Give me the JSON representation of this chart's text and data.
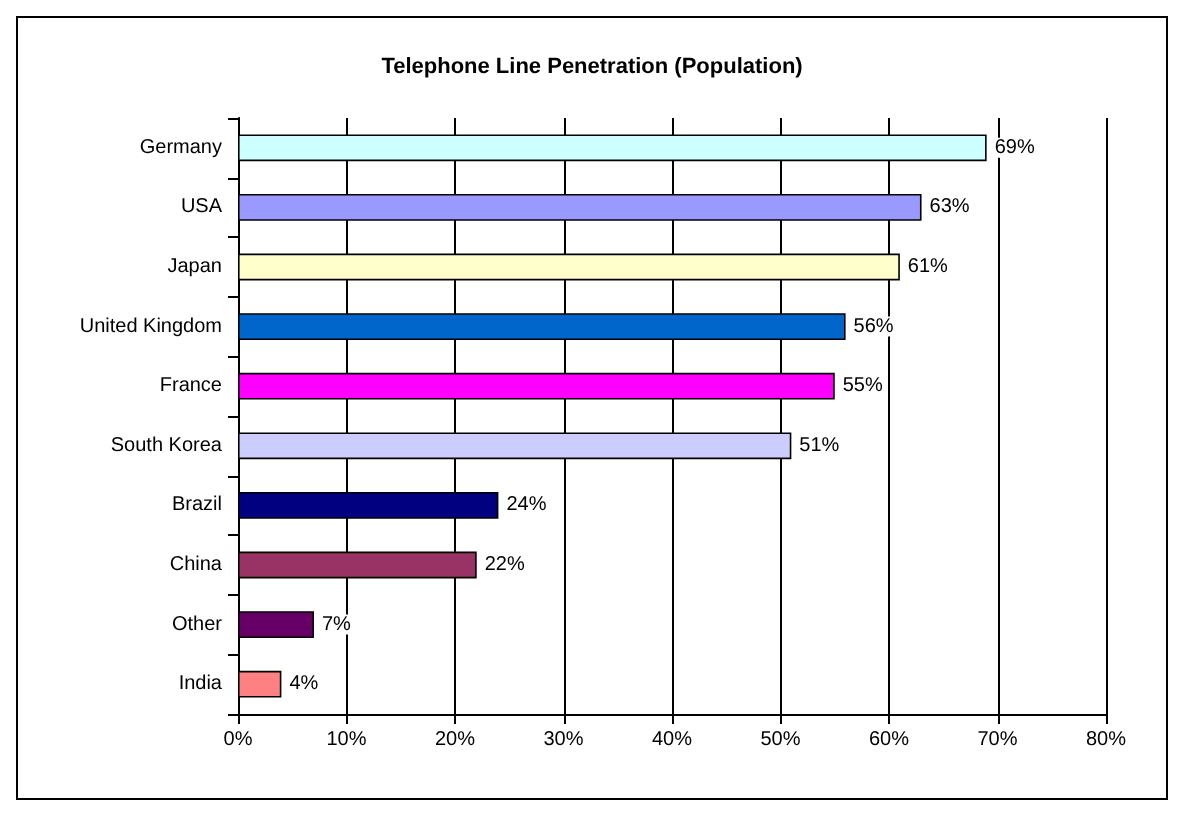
{
  "chart_data": {
    "type": "bar",
    "orientation": "horizontal",
    "title": "Telephone Line Penetration (Population)",
    "categories": [
      "Germany",
      "USA",
      "Japan",
      "United Kingdom",
      "France",
      "South Korea",
      "Brazil",
      "China",
      "Other",
      "India"
    ],
    "values": [
      69,
      63,
      61,
      56,
      55,
      51,
      24,
      22,
      7,
      4
    ],
    "colors": [
      "#ccffff",
      "#9999ff",
      "#ffffcc",
      "#0066cc",
      "#ff00ff",
      "#ccccff",
      "#000080",
      "#993366",
      "#660066",
      "#ff8080"
    ],
    "value_labels": [
      "69%",
      "63%",
      "61%",
      "56%",
      "55%",
      "51%",
      "24%",
      "22%",
      "7%",
      "4%"
    ],
    "xlim": [
      0,
      80
    ],
    "xticks": [
      {
        "value": 0,
        "label": "0%"
      },
      {
        "value": 10,
        "label": "10%"
      },
      {
        "value": 20,
        "label": "20%"
      },
      {
        "value": 30,
        "label": "30%"
      },
      {
        "value": 40,
        "label": "40%"
      },
      {
        "value": 50,
        "label": "50%"
      },
      {
        "value": 60,
        "label": "60%"
      },
      {
        "value": 70,
        "label": "70%"
      },
      {
        "value": 80,
        "label": "80%"
      }
    ],
    "grid": "x"
  }
}
